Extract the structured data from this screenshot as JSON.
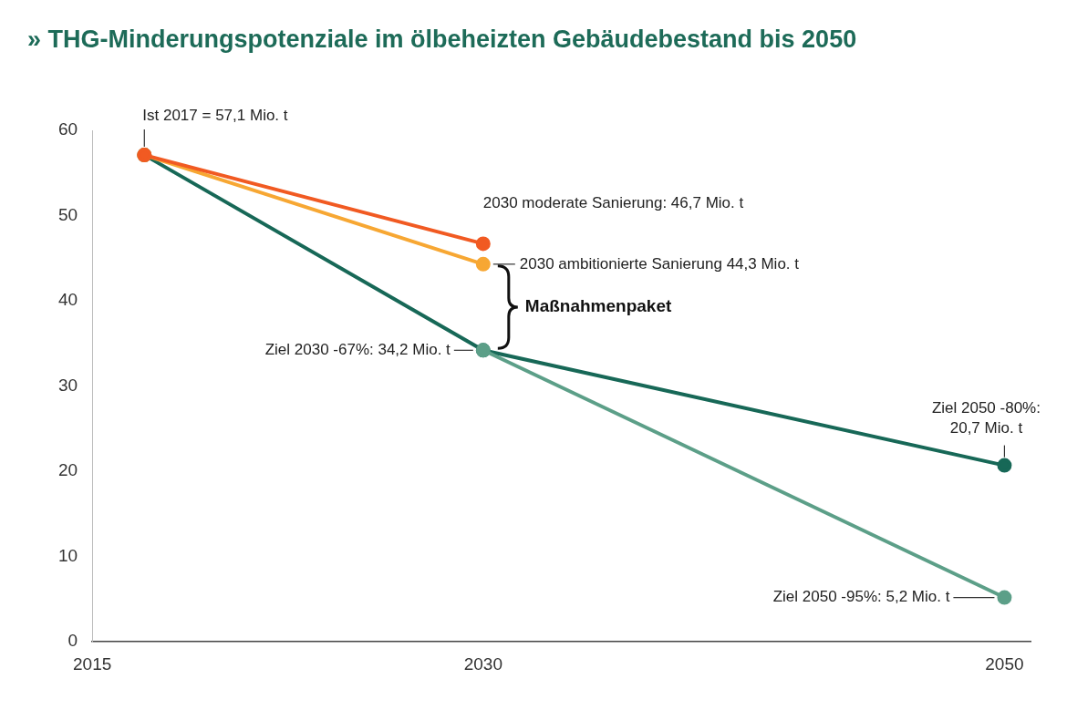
{
  "chart_data": {
    "type": "line",
    "title": "» THG-Minderungspotenziale im ölbeheizten Gebäudebestand bis 2050",
    "x": [
      2017,
      2030,
      2050
    ],
    "xlim": [
      2015,
      2051
    ],
    "xticks": [
      2015,
      2030,
      2050
    ],
    "ylim": [
      0,
      60
    ],
    "yticks": [
      0,
      10,
      20,
      30,
      40,
      50,
      60
    ],
    "grid": false,
    "marker": "circle",
    "series": [
      {
        "color": "#f15a22",
        "values": [
          57.1,
          46.7,
          null
        ]
      },
      {
        "color": "#f7a733",
        "values": [
          57.1,
          44.3,
          null
        ]
      },
      {
        "color": "#5c9f88",
        "values": [
          null,
          34.2,
          5.2
        ]
      },
      {
        "color": "#176857",
        "values": [
          57.1,
          34.2,
          20.7
        ]
      }
    ],
    "annotations": [
      {
        "text": [
          "Ist 2017 = 57,1 Mio. t"
        ],
        "x": 2017,
        "y": 57.1
      },
      {
        "text": [
          "2030 moderate Sanierung: 46,7 Mio. t"
        ],
        "x": 2030,
        "y": 46.7
      },
      {
        "text": [
          "2030 ambitionierte Sanierung 44,3 Mio. t"
        ],
        "x": 2030,
        "y": 44.3
      },
      {
        "text": [
          "Ziel 2030 -67%: 34,2 Mio. t"
        ],
        "x": 2030,
        "y": 34.2
      },
      {
        "text": [
          "Ziel 2050 -80%:",
          "20,7 Mio. t"
        ],
        "x": 2050,
        "y": 20.7
      },
      {
        "text": [
          "Ziel 2050 -95%: 5,2 Mio. t"
        ],
        "x": 2050,
        "y": 5.2
      }
    ],
    "bracket": {
      "text": "Maßnahmenpaket",
      "x": 2030,
      "y_from": 44.3,
      "y_to": 34.2
    }
  }
}
